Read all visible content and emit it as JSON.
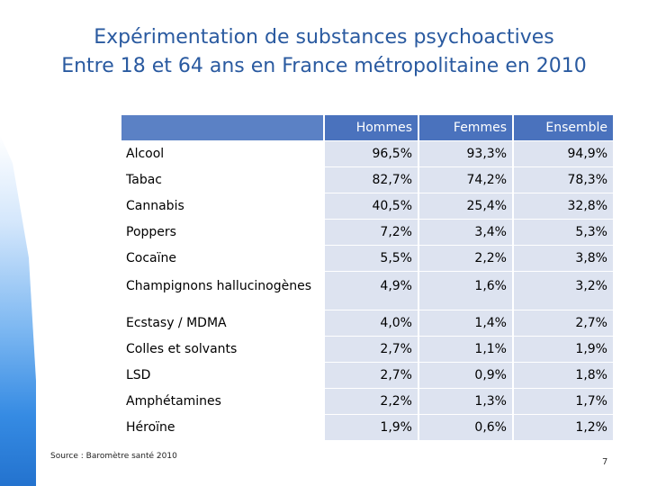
{
  "title": {
    "line1": "Expérimentation de substances psychoactives",
    "line2": "Entre 18 et 64 ans en France métropolitaine en 2010"
  },
  "table": {
    "headers": [
      "Hommes",
      "Femmes",
      "Ensemble"
    ],
    "rows": [
      {
        "label": "Alcool",
        "values": [
          "96,5%",
          "93,3%",
          "94,9%"
        ]
      },
      {
        "label": "Tabac",
        "values": [
          "82,7%",
          "74,2%",
          "78,3%"
        ]
      },
      {
        "label": "Cannabis",
        "values": [
          "40,5%",
          "25,4%",
          "32,8%"
        ]
      },
      {
        "label": "Poppers",
        "values": [
          "7,2%",
          "3,4%",
          "5,3%"
        ]
      },
      {
        "label": "Cocaïne",
        "values": [
          "5,5%",
          "2,2%",
          "3,8%"
        ]
      },
      {
        "label": "Champignons hallucinogènes",
        "values": [
          "4,9%",
          "1,6%",
          "3,2%"
        ]
      },
      {
        "label": "Ecstasy / MDMA",
        "values": [
          "4,0%",
          "1,4%",
          "2,7%"
        ]
      },
      {
        "label": "Colles et solvants",
        "values": [
          "2,7%",
          "1,1%",
          "1,9%"
        ]
      },
      {
        "label": "LSD",
        "values": [
          "2,7%",
          "0,9%",
          "1,8%"
        ]
      },
      {
        "label": "Amphétamines",
        "values": [
          "2,2%",
          "1,3%",
          "1,7%"
        ]
      },
      {
        "label": "Héroïne",
        "values": [
          "1,9%",
          "0,6%",
          "1,2%"
        ]
      }
    ]
  },
  "source": "Source : Baromètre santé 2010",
  "page_number": "7",
  "colors": {
    "title": "#2a5aa0",
    "header": "#4a72bd",
    "cell": "#dde3f0"
  }
}
